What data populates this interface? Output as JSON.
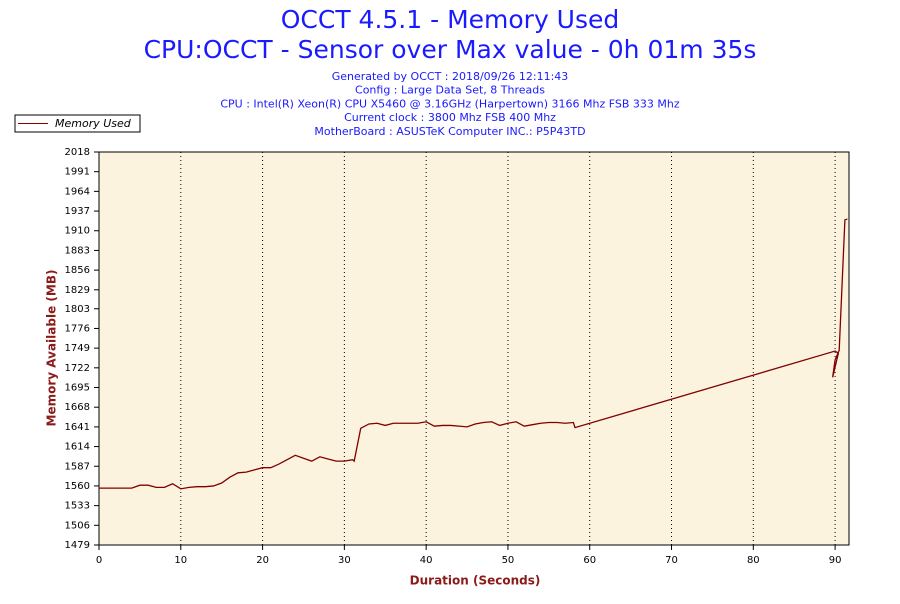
{
  "chart_data": {
    "type": "line",
    "title": "OCCT 4.5.1 - Memory Used",
    "subtitle": "CPU:OCCT - Sensor over Max value - 0h 01m 35s",
    "annotations": [
      "Generated by OCCT : 2018/09/26 12:11:43",
      "Config : Large Data Set, 8 Threads",
      "CPU : Intel(R) Xeon(R) CPU X5460 @ 3.16GHz (Harpertown) 3166 Mhz FSB 333 Mhz",
      "Current clock : 3800 Mhz FSB 400 Mhz",
      "MotherBoard : ASUSTeK Computer INC.: P5P43TD"
    ],
    "x_label": "Duration (Seconds)",
    "y_label": "Memory Available (MB)",
    "legend": "upper left",
    "grid": true,
    "xlim": [
      0,
      91.7
    ],
    "ylim": [
      1479,
      2018
    ],
    "xticks": [
      0,
      10,
      20,
      30,
      40,
      50,
      60,
      70,
      80,
      90
    ],
    "yticks": [
      1479,
      1506,
      1533,
      1560,
      1587,
      1614,
      1641,
      1668,
      1695,
      1722,
      1749,
      1776,
      1803,
      1829,
      1856,
      1883,
      1910,
      1937,
      1964,
      1991,
      2018
    ],
    "series": [
      {
        "name": "Memory Used",
        "color": "#800000",
        "x": [
          0,
          4,
          5,
          6,
          7,
          8,
          9,
          10,
          11,
          12,
          13,
          14,
          15,
          16,
          17,
          18,
          19,
          20,
          21,
          22,
          23,
          24,
          25,
          26,
          27,
          28,
          29,
          30,
          31,
          31.2,
          32,
          33,
          34,
          35,
          36,
          37,
          38,
          39,
          40,
          41,
          42,
          43,
          44,
          45,
          46,
          47,
          48,
          49,
          50,
          51,
          52,
          53,
          54,
          55,
          56,
          57,
          58,
          58.2,
          90,
          90.4,
          89.7,
          90,
          90.5,
          91.2,
          91.5
        ],
        "values": [
          1557,
          1557,
          1561,
          1561,
          1558,
          1558,
          1563,
          1556,
          1558,
          1559,
          1559,
          1560,
          1564,
          1572,
          1578,
          1579,
          1582,
          1585,
          1585,
          1590,
          1596,
          1602,
          1598,
          1594,
          1600,
          1597,
          1594,
          1594,
          1596,
          1594,
          1639,
          1645,
          1646,
          1643,
          1646,
          1646,
          1646,
          1646,
          1648,
          1642,
          1643,
          1643,
          1642,
          1641,
          1645,
          1647,
          1648,
          1643,
          1646,
          1648,
          1642,
          1644,
          1646,
          1647,
          1647,
          1646,
          1647,
          1640,
          1745,
          1742,
          1709,
          1733,
          1746,
          1925,
          1926
        ]
      }
    ]
  }
}
